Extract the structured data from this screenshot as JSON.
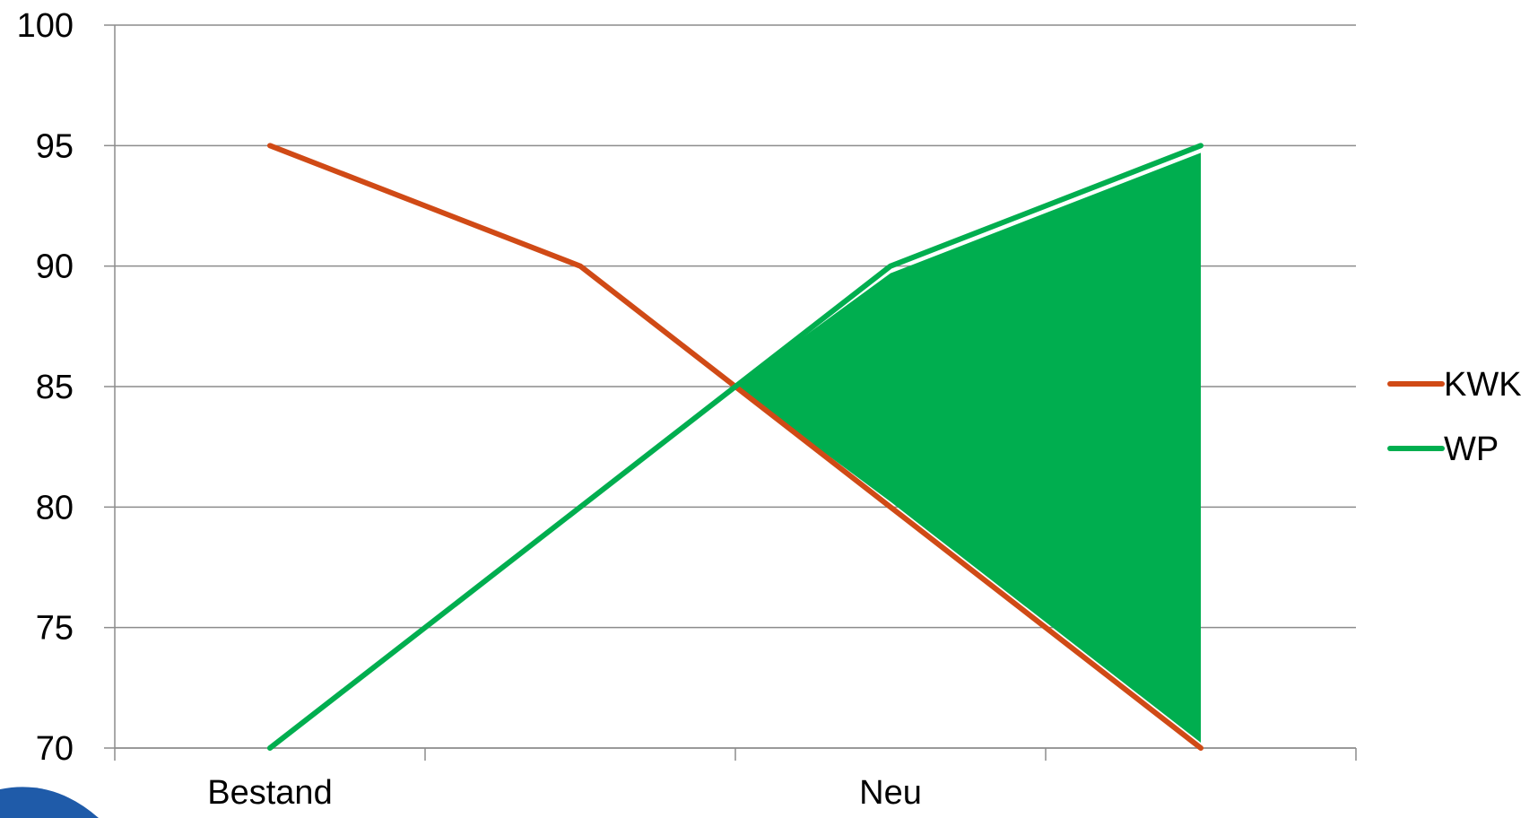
{
  "chart_data": {
    "type": "line",
    "title": "",
    "xlabel": "",
    "ylabel": "",
    "categories": [
      "Bestand",
      "",
      "",
      "Neu",
      "",
      "",
      "",
      ""
    ],
    "x_positions": [
      1,
      2,
      3,
      4,
      5,
      6,
      7,
      8
    ],
    "x_ticks_major": [
      0,
      2,
      4,
      6,
      8
    ],
    "x_category_labels": [
      {
        "x": 1,
        "label": "Bestand"
      },
      {
        "x": 5,
        "label": "Neu"
      }
    ],
    "ylim": [
      70,
      100
    ],
    "xlim": [
      0,
      8
    ],
    "yticks": [
      70,
      75,
      80,
      85,
      90,
      95,
      100
    ],
    "grid": true,
    "legend": "right",
    "series": [
      {
        "name": "KWK",
        "color": "#D04A16",
        "x": [
          1,
          3,
          4,
          5,
          7
        ],
        "values": [
          95,
          90,
          85,
          80,
          70
        ]
      },
      {
        "name": "WP",
        "color": "#00AE4F",
        "x": [
          1,
          3,
          4,
          5,
          7
        ],
        "values": [
          70,
          80,
          85,
          90,
          95
        ]
      }
    ],
    "shaded_region": {
      "color": "#00AE4F",
      "between_series": [
        "WP",
        "KWK"
      ],
      "x_start": 4,
      "x_end": 7
    }
  },
  "decoration": {
    "corner_color": "#1F5BA9"
  }
}
